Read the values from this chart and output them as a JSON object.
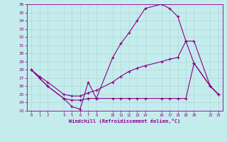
{
  "background_color": "#c5eced",
  "grid_color": "#b0d8da",
  "line_color": "#880088",
  "xlabel": "Windchill (Refroidissement éolien,°C)",
  "xlim": [
    -0.5,
    23.5
  ],
  "ylim": [
    23,
    36
  ],
  "x_ticks": [
    0,
    1,
    2,
    4,
    5,
    6,
    7,
    8,
    10,
    11,
    12,
    13,
    14,
    16,
    17,
    18,
    19,
    20,
    22,
    23
  ],
  "y_ticks": [
    23,
    24,
    25,
    26,
    27,
    28,
    29,
    30,
    31,
    32,
    33,
    34,
    35,
    36
  ],
  "line1_x": [
    0,
    1,
    2,
    4,
    5,
    6,
    7,
    8,
    10,
    11,
    12,
    13,
    14,
    16,
    17,
    18,
    19,
    20,
    22,
    23
  ],
  "line1_y": [
    28.0,
    27.0,
    26.0,
    24.5,
    23.5,
    23.2,
    26.5,
    24.5,
    29.5,
    31.2,
    32.5,
    34.0,
    35.5,
    36.0,
    35.5,
    34.5,
    31.5,
    31.5,
    26.0,
    25.0
  ],
  "line2_x": [
    0,
    2,
    4,
    5,
    6,
    7,
    8,
    10,
    11,
    12,
    13,
    14,
    16,
    17,
    18,
    19,
    20,
    22,
    23
  ],
  "line2_y": [
    28.0,
    26.0,
    24.5,
    24.3,
    24.3,
    24.5,
    24.5,
    24.5,
    24.5,
    24.5,
    24.5,
    24.5,
    24.5,
    24.5,
    24.5,
    24.5,
    28.8,
    26.0,
    25.0
  ],
  "line3_x": [
    0,
    1,
    2,
    4,
    5,
    6,
    7,
    8,
    10,
    11,
    12,
    13,
    14,
    16,
    17,
    18,
    19,
    20,
    22,
    23
  ],
  "line3_y": [
    28.0,
    27.2,
    26.5,
    25.0,
    24.8,
    24.8,
    25.2,
    25.5,
    26.5,
    27.2,
    27.8,
    28.2,
    28.5,
    29.0,
    29.3,
    29.5,
    31.5,
    28.8,
    26.0,
    25.0
  ]
}
